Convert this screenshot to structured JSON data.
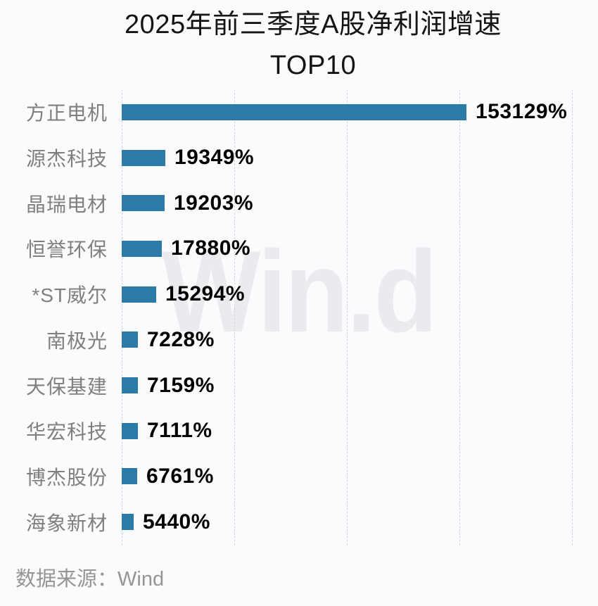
{
  "page": {
    "background": "#fafbfd"
  },
  "title": {
    "line1": "2025年前三季度A股净利润增速",
    "line2": "TOP10"
  },
  "watermark": {
    "text": "Win.d",
    "color": "#e9ebee"
  },
  "source": {
    "label": "数据来源：Wind"
  },
  "chart_data": {
    "type": "bar",
    "orientation": "horizontal",
    "title": "2025年前三季度A股净利润增速 TOP10",
    "categories": [
      "方正电机",
      "源杰科技",
      "晶瑞电材",
      "恒誉环保",
      "*ST威尔",
      "南极光",
      "天保基建",
      "华宏科技",
      "博杰股份",
      "海象新材"
    ],
    "values": [
      153129,
      19349,
      19203,
      17880,
      15294,
      7228,
      7159,
      7111,
      6761,
      5440
    ],
    "value_labels": [
      "153129%",
      "19349%",
      "19203%",
      "17880%",
      "15294%",
      "7228%",
      "7159%",
      "7111%",
      "6761%",
      "5440%"
    ],
    "unit": "%",
    "xlim": [
      0,
      200000
    ],
    "gridline_step": 50000,
    "grid": "vertical dashed, no tick labels",
    "legend": "none",
    "bar_color": "#2c7ba6",
    "category_label_color": "#7f7f7f",
    "value_label_color": "#000000",
    "source": "数据来源：Wind"
  }
}
